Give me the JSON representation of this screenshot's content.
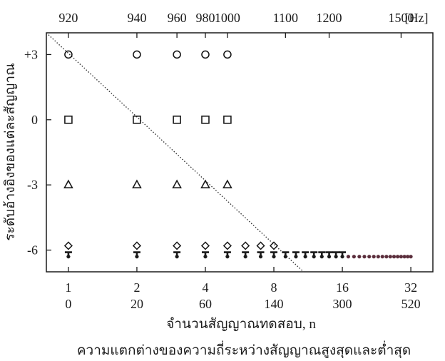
{
  "chart_data": {
    "type": "scatter",
    "x_scale": "log2",
    "xlim": [
      0.8,
      40
    ],
    "ylim": [
      -7,
      4
    ],
    "grid": false,
    "ylabel": "ระดับอ้างอิงของแต่ละสัญญาณ",
    "xlabel": "จำนวนสัญญาณทดสอบ, n",
    "caption": "ความแตกต่างของความถี่ระหว่างสัญญาณสูงสุดและต่ำสุด",
    "y_ticks": [
      {
        "value": 3,
        "label": "+3"
      },
      {
        "value": 0,
        "label": "0"
      },
      {
        "value": -3,
        "label": "-3"
      },
      {
        "value": -6,
        "label": "-6"
      }
    ],
    "x_ticks": [
      {
        "value": 1,
        "label": "1",
        "sub": "0"
      },
      {
        "value": 2,
        "label": "2",
        "sub": "20"
      },
      {
        "value": 4,
        "label": "4",
        "sub": "60"
      },
      {
        "value": 8,
        "label": "8",
        "sub": "140"
      },
      {
        "value": 16,
        "label": "16",
        "sub": "300"
      },
      {
        "value": 32,
        "label": "32",
        "sub": "520"
      }
    ],
    "top_ticks": [
      {
        "value": 1,
        "label": "920"
      },
      {
        "value": 2,
        "label": "940"
      },
      {
        "value": 3,
        "label": "960"
      },
      {
        "value": 4,
        "label": "980"
      },
      {
        "value": 5,
        "label": "1000"
      },
      {
        "value": 9,
        "label": "1100"
      },
      {
        "value": 14,
        "label": "1200"
      },
      {
        "value": 29,
        "label": "1500"
      }
    ],
    "top_unit": "[Hz]",
    "series": [
      {
        "marker": "circle",
        "y": 3,
        "x": [
          1,
          2,
          3,
          4,
          5
        ]
      },
      {
        "marker": "square",
        "y": 0,
        "x": [
          1,
          2,
          3,
          4,
          5
        ]
      },
      {
        "marker": "triangle",
        "y": -3,
        "x": [
          1,
          2,
          3,
          4,
          5
        ]
      },
      {
        "marker": "diamond",
        "y": -5.8,
        "x": [
          1,
          2,
          3,
          4,
          5,
          6,
          7,
          8
        ]
      },
      {
        "marker": "tee",
        "y": -6.1,
        "x": [
          1,
          2,
          3,
          4,
          5,
          6,
          7,
          8,
          9,
          10,
          11,
          12,
          13,
          14,
          15,
          16
        ]
      },
      {
        "marker": "dot",
        "y": -6.3,
        "x": [
          1,
          2,
          3,
          4,
          5,
          6,
          7,
          8,
          9,
          10,
          11,
          12,
          13,
          14,
          15,
          16,
          17,
          18,
          19,
          20,
          21,
          22,
          23,
          24,
          25,
          26,
          27,
          28,
          29,
          30,
          31,
          32
        ]
      }
    ],
    "trend_line": {
      "from": [
        0.8,
        4.0
      ],
      "to": [
        10.8,
        -7.0
      ]
    }
  }
}
